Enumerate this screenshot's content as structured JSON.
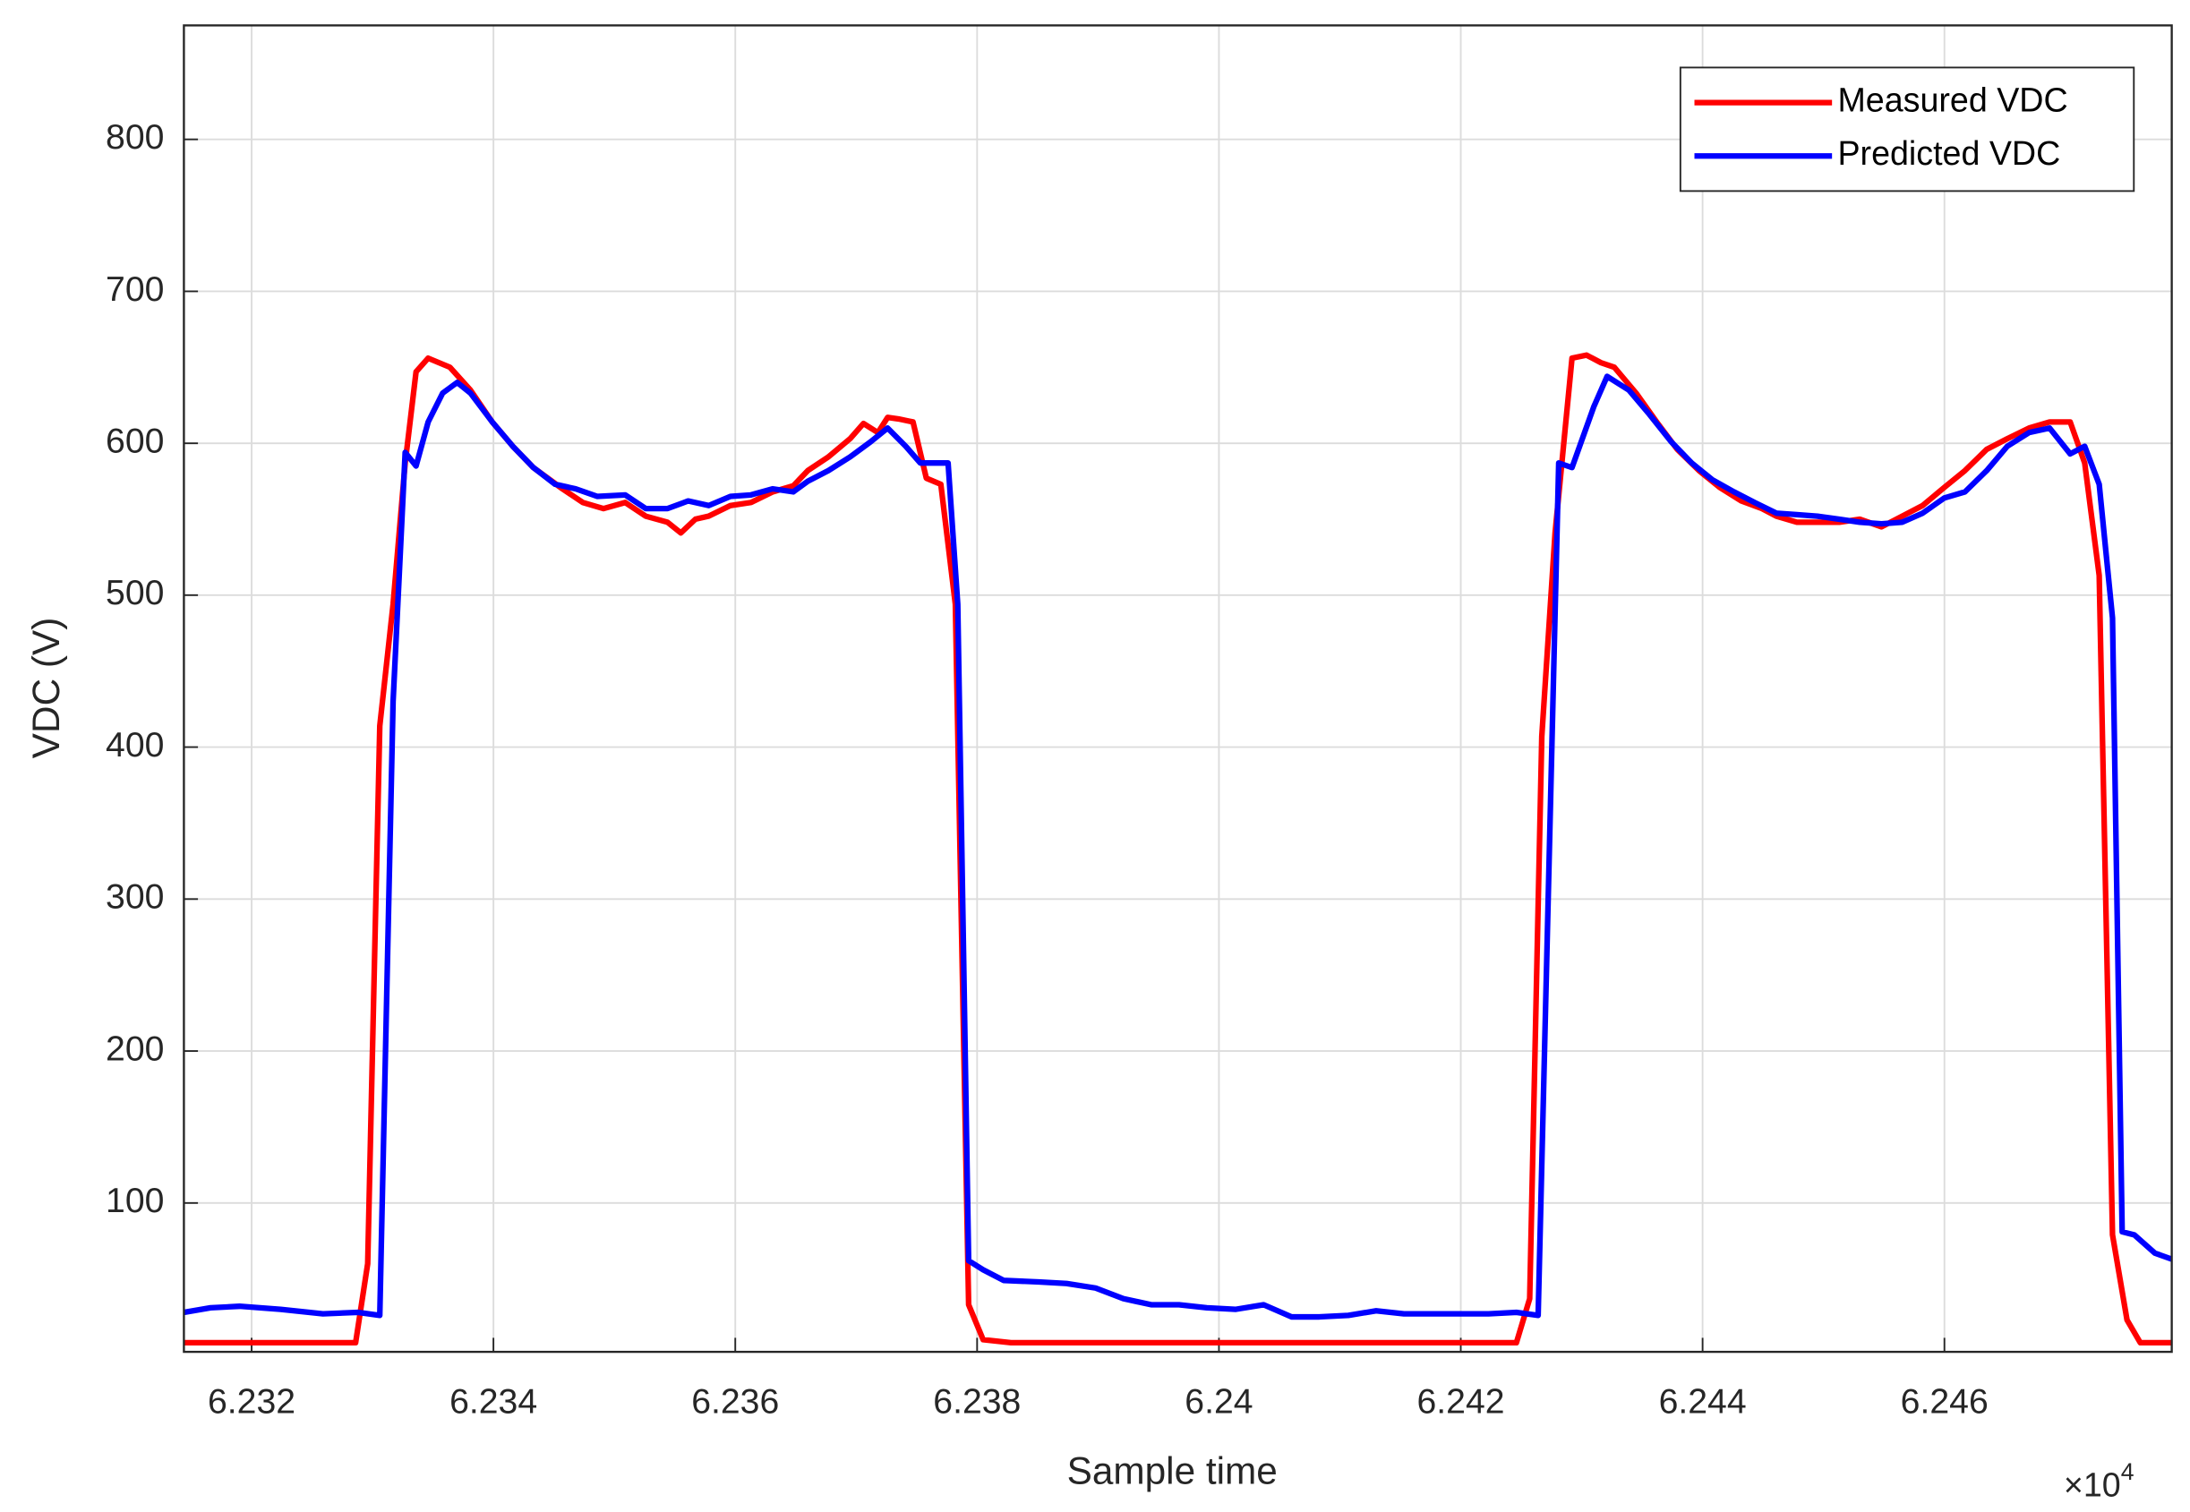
{
  "chart_data": {
    "type": "line",
    "x_label": "Sample time",
    "y_label": "VDC (V)",
    "x_multiplier": {
      "base": "×10",
      "exponent": "4"
    },
    "xlim": [
      6.23144,
      6.24788
    ],
    "ylim": [
      2,
      875
    ],
    "xticks": [
      6.232,
      6.234,
      6.236,
      6.238,
      6.24,
      6.242,
      6.244,
      6.246
    ],
    "yticks": [
      100,
      200,
      300,
      400,
      500,
      600,
      700,
      800
    ],
    "grid": true,
    "legend": "top-right",
    "series": [
      {
        "name": "Measured VDC",
        "color": "#ff0000",
        "x": [
          6.23144,
          6.23286,
          6.23296,
          6.23306,
          6.23317,
          6.23327,
          6.23336,
          6.23346,
          6.23364,
          6.23381,
          6.23399,
          6.23416,
          6.23433,
          6.23457,
          6.23474,
          6.23491,
          6.23509,
          6.23526,
          6.23544,
          6.23555,
          6.23567,
          6.23578,
          6.23596,
          6.23613,
          6.23631,
          6.23648,
          6.2366,
          6.23677,
          6.23695,
          6.23706,
          6.23718,
          6.23726,
          6.23735,
          6.23747,
          6.23758,
          6.2377,
          6.23782,
          6.23793,
          6.23805,
          6.23828,
          6.24246,
          6.24257,
          6.24267,
          6.24278,
          6.24292,
          6.24304,
          6.24316,
          6.24327,
          6.24345,
          6.24362,
          6.24379,
          6.24397,
          6.24414,
          6.24432,
          6.24449,
          6.24461,
          6.24478,
          6.24495,
          6.24513,
          6.2453,
          6.24548,
          6.24565,
          6.24582,
          6.246,
          6.24617,
          6.24635,
          6.24652,
          6.2467,
          6.24687,
          6.24704,
          6.24716,
          6.24728,
          6.24739,
          6.24751,
          6.24762,
          6.24788
        ],
        "values": [
          8,
          8,
          60,
          414,
          494,
          587,
          647,
          656,
          650,
          635,
          614,
          598,
          584,
          570,
          561,
          557,
          561,
          552,
          548,
          541,
          550,
          552,
          559,
          561,
          568,
          572,
          582,
          591,
          603,
          613,
          607,
          617,
          616,
          614,
          577,
          573,
          494,
          33,
          10,
          8,
          8,
          37,
          407,
          541,
          656,
          658,
          653,
          650,
          633,
          614,
          596,
          582,
          571,
          562,
          557,
          552,
          548,
          548,
          548,
          550,
          545,
          552,
          559,
          571,
          582,
          596,
          603,
          610,
          614,
          614,
          587,
          513,
          79,
          23,
          8,
          8
        ]
      },
      {
        "name": "Predicted VDC",
        "color": "#0000ff",
        "x": [
          6.23144,
          6.23166,
          6.2319,
          6.23224,
          6.23259,
          6.23288,
          6.23306,
          6.23317,
          6.23327,
          6.23336,
          6.23346,
          6.23358,
          6.2337,
          6.23381,
          6.23399,
          6.23416,
          6.23433,
          6.23451,
          6.23468,
          6.23486,
          6.23509,
          6.23526,
          6.23544,
          6.23561,
          6.23578,
          6.23596,
          6.23613,
          6.23631,
          6.23648,
          6.2366,
          6.23677,
          6.23695,
          6.23712,
          6.23726,
          6.23741,
          6.23753,
          6.23764,
          6.23776,
          6.23784,
          6.23793,
          6.23805,
          6.23822,
          6.23851,
          6.23874,
          6.23898,
          6.23921,
          6.23944,
          6.23967,
          6.2399,
          6.24014,
          6.24037,
          6.2406,
          6.24083,
          6.24107,
          6.2413,
          6.24153,
          6.24176,
          6.24223,
          6.24246,
          6.24264,
          6.24281,
          6.24292,
          6.2431,
          6.24321,
          6.24339,
          6.24356,
          6.24374,
          6.24391,
          6.24408,
          6.24426,
          6.24443,
          6.24461,
          6.24478,
          6.24495,
          6.24513,
          6.2453,
          6.24548,
          6.24565,
          6.24582,
          6.246,
          6.24617,
          6.24635,
          6.24652,
          6.2467,
          6.24687,
          6.24704,
          6.24716,
          6.24728,
          6.24739,
          6.24747,
          6.24757,
          6.24774,
          6.24788
        ],
        "values": [
          28,
          31,
          32,
          30,
          27,
          28,
          26,
          430,
          594,
          585,
          614,
          633,
          640,
          633,
          614,
          598,
          584,
          573,
          570,
          565,
          566,
          557,
          557,
          562,
          559,
          565,
          566,
          570,
          568,
          575,
          582,
          591,
          601,
          610,
          598,
          587,
          587,
          587,
          494,
          62,
          56,
          49,
          48,
          47,
          44,
          37,
          33,
          33,
          31,
          30,
          33,
          25,
          25,
          26,
          29,
          27,
          27,
          27,
          28,
          26,
          587,
          584,
          624,
          644,
          635,
          619,
          601,
          587,
          576,
          568,
          561,
          554,
          553,
          552,
          550,
          548,
          547,
          548,
          554,
          564,
          568,
          582,
          598,
          607,
          610,
          593,
          598,
          573,
          485,
          81,
          79,
          67,
          63
        ]
      }
    ]
  }
}
